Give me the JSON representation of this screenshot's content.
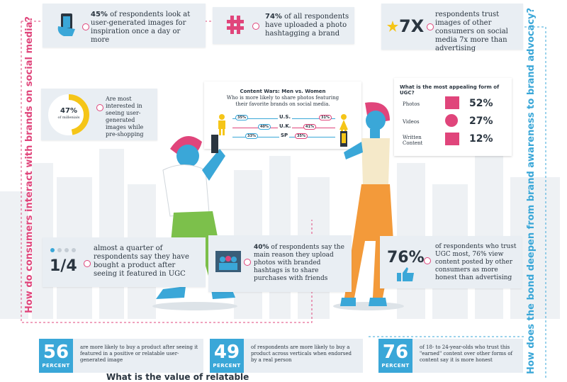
{
  "colors": {
    "pink": "#e0457b",
    "cyan": "#3aa7d8",
    "yellow": "#f5c518",
    "card": "#e9eef3"
  },
  "side": {
    "left": "How do consumers interact with brands on social media?",
    "right": "How does the bond deepen from brand awareness to brand advocacy?"
  },
  "top": {
    "stat1": {
      "highlight": "45%",
      "text": " of respondents look at user-generated images for inspiration once a day or more"
    },
    "stat2": {
      "highlight": "74%",
      "text": " of all respondents have uploaded a photo hashtagging a brand",
      "icon": "hashtag-icon"
    },
    "stat3": {
      "big": "7X",
      "text": "respondents trust images of other consumers on social media 7x more than advertising",
      "icon": "star-icon"
    }
  },
  "millennials": {
    "pct": "47%",
    "sub": "of millenials",
    "fill": 0.47,
    "text": "Are most interested in seeing user-generated images while pre-shopping"
  },
  "content_wars": {
    "title": "Content Wars: Men vs. Women",
    "subtitle": "Who is more likely to share photos featuring their favorite brands on social media.",
    "rows": [
      {
        "country": "U.S.",
        "men": "35%",
        "women": "31%"
      },
      {
        "country": "U.K.",
        "men": "40%",
        "women": "41%"
      },
      {
        "country": "SP",
        "men": "33%",
        "women": "35%"
      }
    ]
  },
  "ugc": {
    "title": "What is the most appealing form of UGC?",
    "rows": [
      {
        "label": "Photos",
        "pct": "52%",
        "icon": "photo-icon"
      },
      {
        "label": "Videos",
        "pct": "27%",
        "icon": "video-play-icon"
      },
      {
        "label": "Written Content",
        "pct": "12%",
        "icon": "document-icon"
      }
    ]
  },
  "mid": {
    "quarter": {
      "big": "1/4",
      "text": "almost a quarter of respondents say they have bought a product after seeing it featured in UGC"
    },
    "forty": {
      "highlight": "40%",
      "text": " of respondents say the main reason they upload photos with branded hashtags is to share purchases with friends"
    },
    "seventysix": {
      "big": "76%",
      "text": "of respondents who trust UGC most, 76% view content posted by other consumers as more honest than advertising"
    }
  },
  "bottom": [
    {
      "num": "56",
      "label": "PERCENT",
      "text": "are more likely to buy a product after seeing it featured in a positive or relatable user-generated image"
    },
    {
      "num": "49",
      "label": "PERCENT",
      "text": "of respondents are more likely to buy a product across verticals when endorsed by a real person"
    },
    {
      "num": "76",
      "label": "PERCENT",
      "text": "of 18- to 24-year-olds who trust this \"earned\" content over other forms of content say it is more honest"
    }
  ],
  "footer_heading": "What is the value of relatable"
}
